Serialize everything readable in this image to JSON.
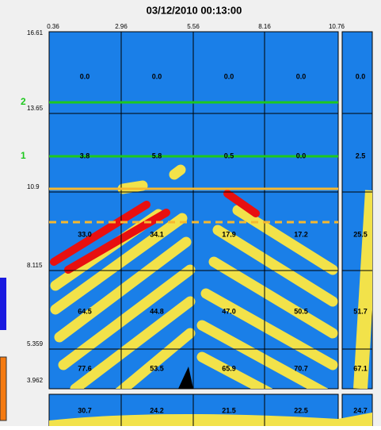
{
  "title": "03/12/2010 00:13:00",
  "x_axis_labels": [
    "0.36",
    "2.96",
    "5.56",
    "8.16",
    "10.76"
  ],
  "y_axis_labels": [
    "16.61",
    "13.65",
    "10.9",
    "8.115",
    "5.359",
    "3.962"
  ],
  "line_labels": [
    "2",
    "1"
  ],
  "grid": {
    "rows": [
      {
        "cells": [
          "0.0",
          "0.0",
          "0.0",
          "0.0"
        ],
        "total": "0.0"
      },
      {
        "cells": [
          "3.8",
          "5.8",
          "0.5",
          "0.0"
        ],
        "total": "2.5"
      },
      {
        "cells": [
          "33.0",
          "34.1",
          "17.9",
          "17.2"
        ],
        "total": "25.5"
      },
      {
        "cells": [
          "64.5",
          "44.8",
          "47.0",
          "50.5"
        ],
        "total": "51.7"
      },
      {
        "cells": [
          "77.6",
          "53.5",
          "65.9",
          "70.7"
        ],
        "total": "67.1"
      }
    ],
    "bottom": {
      "cells": [
        "30.7",
        "24.2",
        "21.5",
        "22.5"
      ],
      "total": "24.7"
    }
  }
}
